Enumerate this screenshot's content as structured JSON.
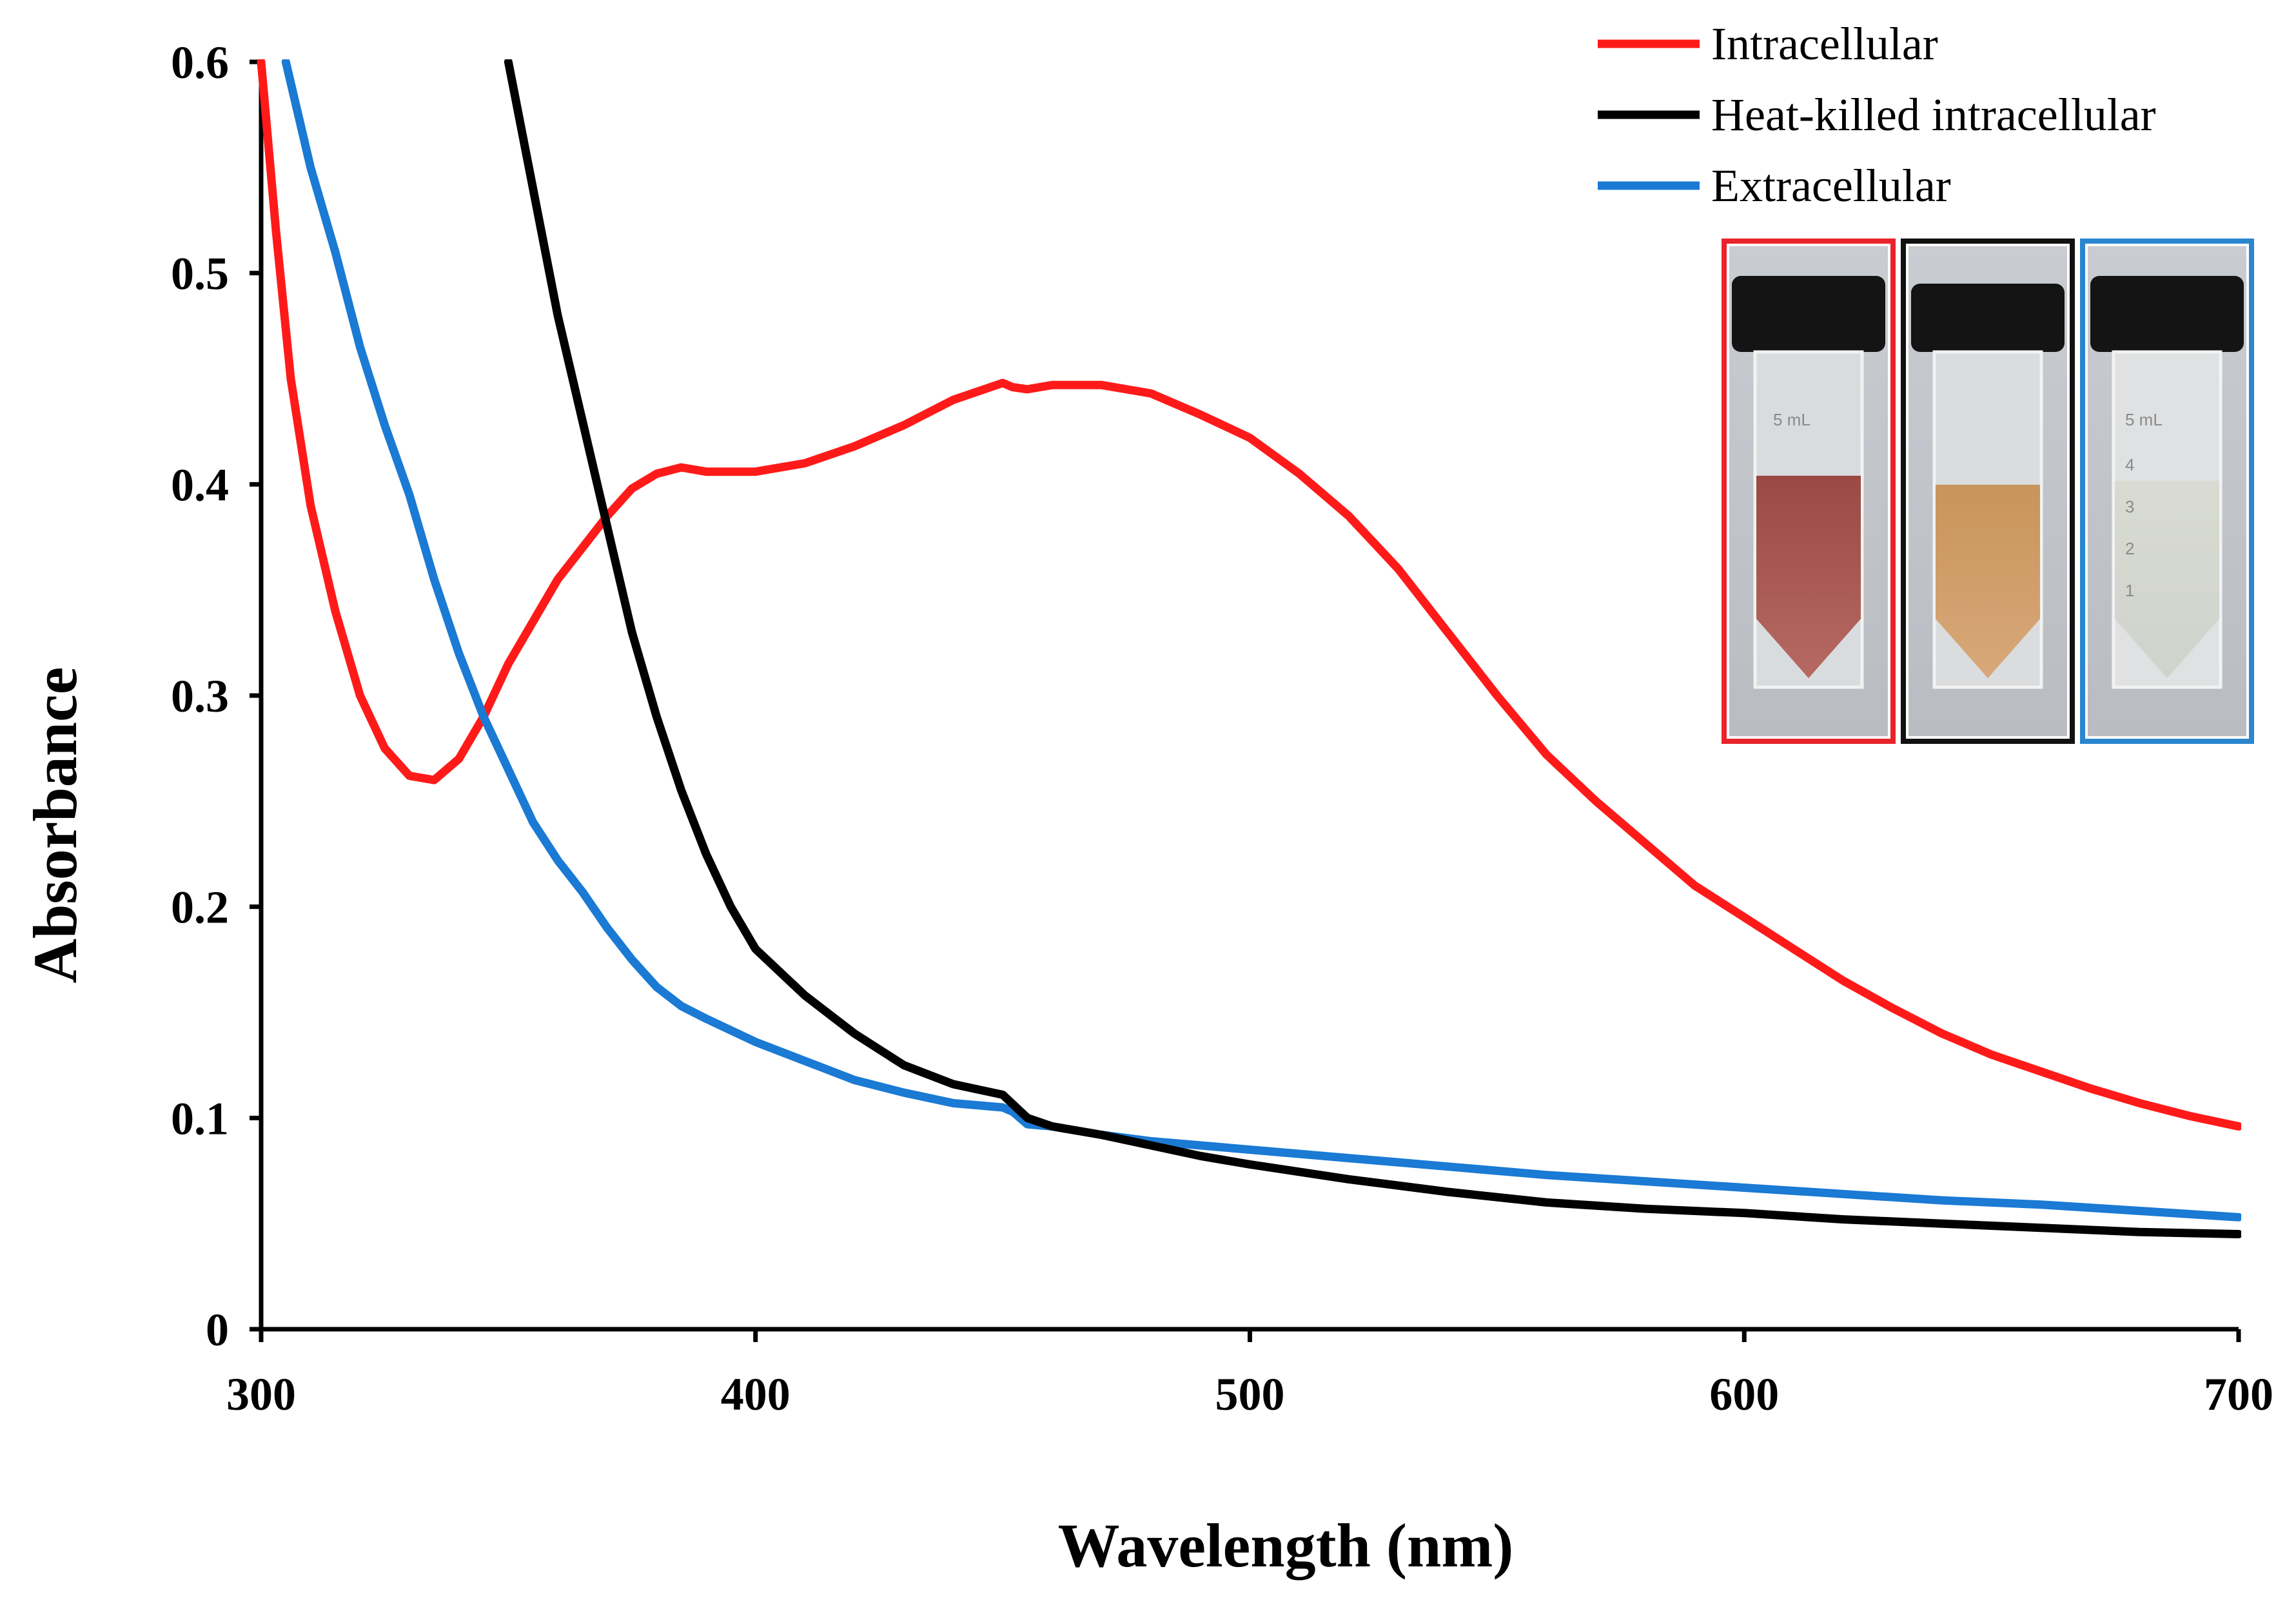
{
  "chart_data": {
    "type": "line",
    "title": "",
    "xlabel": "Wavelength  (nm)",
    "ylabel": "Absorbance",
    "xlim": [
      300,
      700
    ],
    "ylim": [
      0,
      0.6
    ],
    "x_ticks": [
      "300",
      "400",
      "500",
      "600",
      "700"
    ],
    "y_ticks": [
      "0",
      "0.1",
      "0.2",
      "0.3",
      "0.4",
      "0.5",
      "0.6"
    ],
    "grid": false,
    "legend_position": "top-right",
    "series": [
      {
        "name": "Intracellular",
        "color": "#ff1a1a",
        "x": [
          300,
          303,
          306,
          310,
          315,
          320,
          325,
          330,
          335,
          340,
          345,
          350,
          355,
          360,
          365,
          370,
          375,
          380,
          385,
          390,
          400,
          410,
          420,
          430,
          440,
          450,
          452,
          455,
          460,
          470,
          480,
          490,
          500,
          510,
          520,
          530,
          540,
          550,
          560,
          570,
          580,
          590,
          600,
          610,
          620,
          630,
          640,
          650,
          660,
          670,
          680,
          690,
          700
        ],
        "y": [
          0.6,
          0.52,
          0.45,
          0.39,
          0.34,
          0.3,
          0.275,
          0.262,
          0.26,
          0.27,
          0.29,
          0.315,
          0.335,
          0.355,
          0.37,
          0.385,
          0.398,
          0.405,
          0.408,
          0.406,
          0.406,
          0.41,
          0.418,
          0.428,
          0.44,
          0.448,
          0.446,
          0.445,
          0.447,
          0.447,
          0.443,
          0.433,
          0.422,
          0.405,
          0.385,
          0.36,
          0.33,
          0.3,
          0.272,
          0.25,
          0.23,
          0.21,
          0.195,
          0.18,
          0.165,
          0.152,
          0.14,
          0.13,
          0.122,
          0.114,
          0.107,
          0.101,
          0.096
        ]
      },
      {
        "name": "Heat-killed intracellular",
        "color": "#000000",
        "x": [
          350,
          355,
          360,
          365,
          370,
          375,
          380,
          385,
          390,
          395,
          400,
          410,
          420,
          430,
          440,
          450,
          455,
          460,
          470,
          480,
          490,
          500,
          520,
          540,
          560,
          580,
          600,
          620,
          640,
          660,
          680,
          700
        ],
        "y": [
          0.6,
          0.54,
          0.48,
          0.43,
          0.38,
          0.33,
          0.29,
          0.255,
          0.225,
          0.2,
          0.18,
          0.158,
          0.14,
          0.125,
          0.116,
          0.111,
          0.1,
          0.096,
          0.092,
          0.087,
          0.082,
          0.078,
          0.071,
          0.065,
          0.06,
          0.057,
          0.055,
          0.052,
          0.05,
          0.048,
          0.046,
          0.045
        ]
      },
      {
        "name": "Extracellular",
        "color": "#1a7ad4",
        "x": [
          305,
          310,
          315,
          320,
          325,
          330,
          335,
          340,
          345,
          350,
          355,
          360,
          365,
          370,
          375,
          380,
          385,
          390,
          400,
          410,
          420,
          430,
          440,
          450,
          452,
          455,
          460,
          470,
          480,
          490,
          500,
          520,
          540,
          560,
          580,
          600,
          620,
          640,
          660,
          680,
          700
        ],
        "y": [
          0.6,
          0.55,
          0.51,
          0.465,
          0.428,
          0.395,
          0.355,
          0.32,
          0.29,
          0.265,
          0.24,
          0.222,
          0.207,
          0.19,
          0.175,
          0.162,
          0.153,
          0.147,
          0.136,
          0.127,
          0.118,
          0.112,
          0.107,
          0.105,
          0.103,
          0.097,
          0.096,
          0.092,
          0.089,
          0.087,
          0.085,
          0.081,
          0.077,
          0.073,
          0.07,
          0.067,
          0.064,
          0.061,
          0.059,
          0.056,
          0.053
        ]
      }
    ],
    "inset": {
      "description": "photographs of three vials",
      "vial_labels": [
        "5 mL",
        "4",
        "3",
        "2",
        "1"
      ],
      "frame_colors": [
        "#e8232b",
        "#111111",
        "#2a86cf"
      ]
    }
  }
}
